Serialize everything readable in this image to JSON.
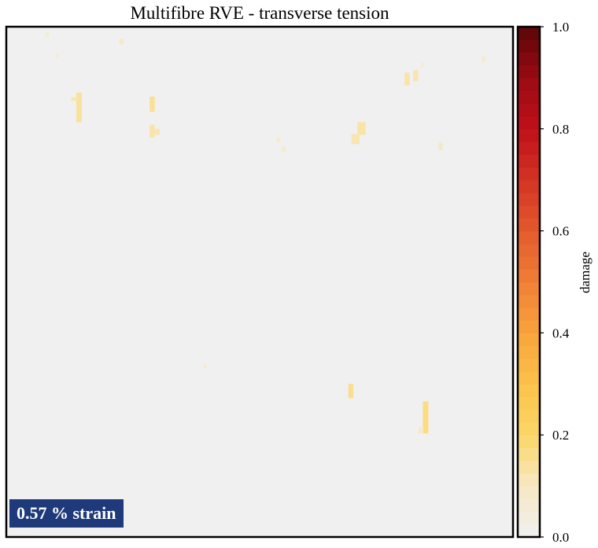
{
  "chart_data": {
    "type": "heatmap",
    "title": "Multifibre RVE - transverse tension",
    "annotation": "0.57 % strain",
    "colorbar": {
      "label": "damage",
      "range": [
        0.0,
        1.0
      ],
      "ticks": [
        "0.0",
        "0.2",
        "0.4",
        "0.6",
        "0.8",
        "1.0"
      ],
      "tick_values": [
        0.0,
        0.2,
        0.4,
        0.6,
        0.8,
        1.0
      ],
      "levels": 40,
      "colormap": "YlOrRd-like",
      "colormap_stops": [
        {
          "v": 0.0,
          "color": "#f0f0f0"
        },
        {
          "v": 0.1,
          "color": "#f7e8c4"
        },
        {
          "v": 0.2,
          "color": "#fcd766"
        },
        {
          "v": 0.3,
          "color": "#fbc24a"
        },
        {
          "v": 0.4,
          "color": "#f9a43c"
        },
        {
          "v": 0.5,
          "color": "#f07f36"
        },
        {
          "v": 0.6,
          "color": "#e35a2e"
        },
        {
          "v": 0.7,
          "color": "#d33324"
        },
        {
          "v": 0.8,
          "color": "#c0101a"
        },
        {
          "v": 0.9,
          "color": "#9a0b12"
        },
        {
          "v": 1.0,
          "color": "#5a0609"
        }
      ]
    },
    "background_color": "#f0f0f0",
    "domain": {
      "x": [
        0,
        1
      ],
      "y": [
        0,
        1
      ]
    },
    "damage_patches": [
      {
        "x": 0.138,
        "y": 0.813,
        "w": 0.011,
        "h": 0.058,
        "v": 0.14
      },
      {
        "x": 0.128,
        "y": 0.855,
        "w": 0.013,
        "h": 0.007,
        "v": 0.12
      },
      {
        "x": 0.283,
        "y": 0.833,
        "w": 0.01,
        "h": 0.03,
        "v": 0.15
      },
      {
        "x": 0.283,
        "y": 0.783,
        "w": 0.01,
        "h": 0.025,
        "v": 0.13
      },
      {
        "x": 0.293,
        "y": 0.788,
        "w": 0.01,
        "h": 0.012,
        "v": 0.12
      },
      {
        "x": 0.693,
        "y": 0.788,
        "w": 0.016,
        "h": 0.025,
        "v": 0.13
      },
      {
        "x": 0.681,
        "y": 0.77,
        "w": 0.016,
        "h": 0.02,
        "v": 0.12
      },
      {
        "x": 0.786,
        "y": 0.885,
        "w": 0.01,
        "h": 0.025,
        "v": 0.13
      },
      {
        "x": 0.803,
        "y": 0.893,
        "w": 0.01,
        "h": 0.022,
        "v": 0.12
      },
      {
        "x": 0.853,
        "y": 0.758,
        "w": 0.008,
        "h": 0.015,
        "v": 0.1
      },
      {
        "x": 0.533,
        "y": 0.773,
        "w": 0.008,
        "h": 0.01,
        "v": 0.08
      },
      {
        "x": 0.543,
        "y": 0.755,
        "w": 0.008,
        "h": 0.01,
        "v": 0.08
      },
      {
        "x": 0.223,
        "y": 0.965,
        "w": 0.008,
        "h": 0.012,
        "v": 0.09
      },
      {
        "x": 0.078,
        "y": 0.98,
        "w": 0.006,
        "h": 0.01,
        "v": 0.06
      },
      {
        "x": 0.098,
        "y": 0.938,
        "w": 0.006,
        "h": 0.01,
        "v": 0.05
      },
      {
        "x": 0.938,
        "y": 0.93,
        "w": 0.008,
        "h": 0.012,
        "v": 0.06
      },
      {
        "x": 0.818,
        "y": 0.92,
        "w": 0.006,
        "h": 0.01,
        "v": 0.05
      },
      {
        "x": 0.675,
        "y": 0.272,
        "w": 0.01,
        "h": 0.028,
        "v": 0.16
      },
      {
        "x": 0.822,
        "y": 0.203,
        "w": 0.011,
        "h": 0.063,
        "v": 0.17
      },
      {
        "x": 0.813,
        "y": 0.203,
        "w": 0.01,
        "h": 0.012,
        "v": 0.08
      },
      {
        "x": 0.388,
        "y": 0.33,
        "w": 0.008,
        "h": 0.01,
        "v": 0.05
      }
    ]
  }
}
